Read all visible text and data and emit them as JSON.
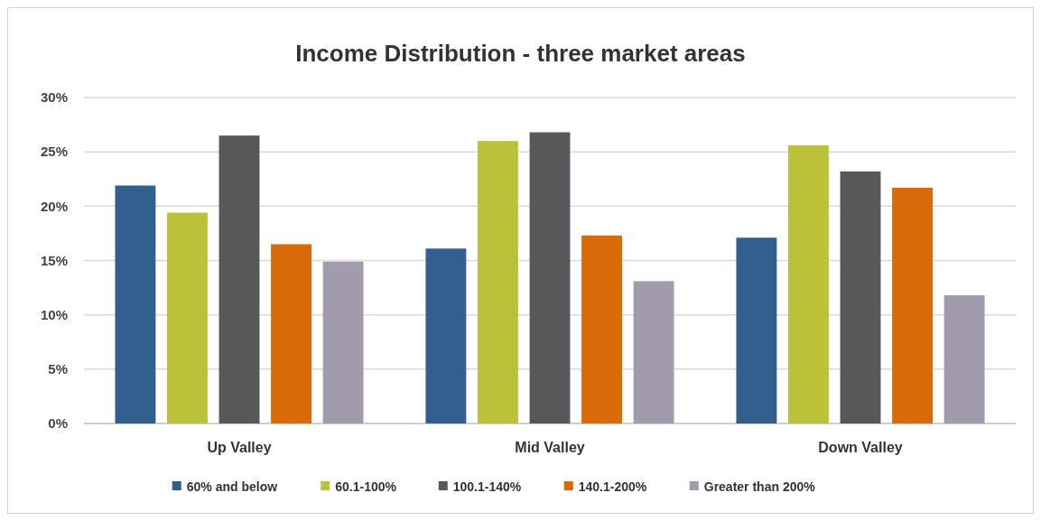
{
  "chart_data": {
    "type": "bar",
    "title": "Income Distribution - three market areas",
    "categories": [
      "Up Valley",
      "Mid Valley",
      "Down Valley"
    ],
    "series": [
      {
        "name": "60% and below",
        "color": "#335f8f",
        "values": [
          21.9,
          16.1,
          17.1
        ]
      },
      {
        "name": "60.1-100%",
        "color": "#bcc13a",
        "values": [
          19.4,
          26.0,
          25.6
        ]
      },
      {
        "name": "100.1-140%",
        "color": "#58585a",
        "values": [
          26.5,
          26.8,
          23.2
        ]
      },
      {
        "name": "140.1-200%",
        "color": "#d86a0a",
        "values": [
          16.5,
          17.3,
          21.7
        ]
      },
      {
        "name": "Greater than 200%",
        "color": "#a29aad",
        "values": [
          14.9,
          13.1,
          11.8
        ]
      }
    ],
    "ylim": [
      0,
      30
    ],
    "yticks": [
      {
        "value": 0,
        "label": "0%"
      },
      {
        "value": 5,
        "label": "5%"
      },
      {
        "value": 10,
        "label": "10%"
      },
      {
        "value": 15,
        "label": "15%"
      },
      {
        "value": 20,
        "label": "20%"
      },
      {
        "value": 25,
        "label": "25%"
      },
      {
        "value": 30,
        "label": "30%"
      }
    ],
    "grid": "y",
    "legend": "bottom"
  }
}
